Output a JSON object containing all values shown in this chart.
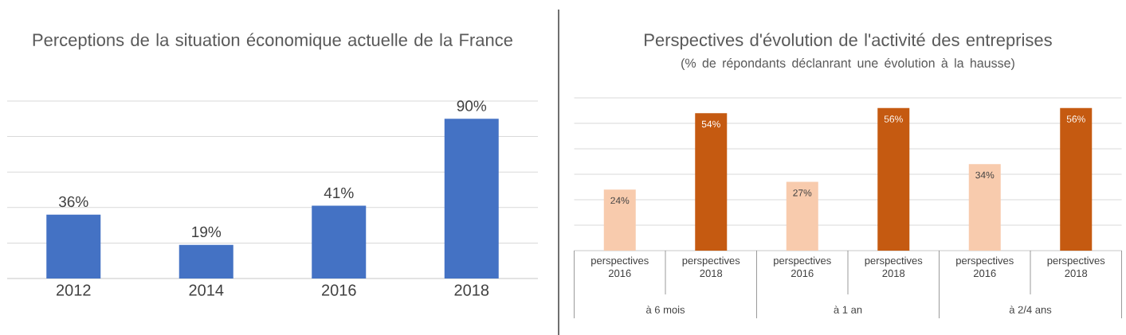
{
  "chart_data": [
    {
      "type": "bar",
      "title": "Perceptions de la situation économique actuelle de la France",
      "categories": [
        "2012",
        "2014",
        "2016",
        "2018"
      ],
      "values": [
        36,
        19,
        41,
        90
      ],
      "color": "#4472c4",
      "value_labels": [
        "36%",
        "19%",
        "41%",
        "90%"
      ],
      "ylim": [
        0,
        100
      ],
      "yticks": [
        {
          "value": 0,
          "label": null
        },
        {
          "value": 20,
          "label": null
        },
        {
          "value": 40,
          "label": null
        },
        {
          "value": 60,
          "label": null
        },
        {
          "value": 80,
          "label": null
        },
        {
          "value": 100,
          "label": null
        }
      ],
      "grid": "y",
      "tick_labels": "x"
    },
    {
      "type": "bar",
      "title": "Perspectives d'évolution de l'activité des entreprises",
      "subtitle": "(% de répondants déclanrant une évolution à la hausse)",
      "categories": [
        "perspectives 2016",
        "perspectives 2018",
        "perspectives 2016",
        "perspectives 2018",
        "perspectives 2016",
        "perspectives 2018"
      ],
      "values": [
        24,
        54,
        27,
        56,
        34,
        56
      ],
      "colors": [
        "#f8cbad",
        "#c55a11",
        "#f8cbad",
        "#c55a11",
        "#f8cbad",
        "#c55a11"
      ],
      "value_labels": [
        "24%",
        "54%",
        "27%",
        "56%",
        "34%",
        "56%"
      ],
      "annotations": [
        "à 6 mois",
        "à 1 an",
        "à 2/4 ans"
      ],
      "ylim": [
        0,
        60
      ],
      "yticks": [
        {
          "value": 0,
          "label": null
        },
        {
          "value": 10,
          "label": null
        },
        {
          "value": 20,
          "label": null
        },
        {
          "value": 30,
          "label": null
        },
        {
          "value": 40,
          "label": null
        },
        {
          "value": 50,
          "label": null
        },
        {
          "value": 60,
          "label": null
        }
      ],
      "grid": "y",
      "tick_labels": "x"
    }
  ]
}
